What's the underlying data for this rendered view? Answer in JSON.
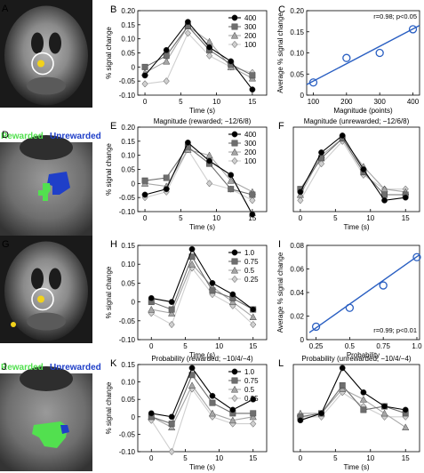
{
  "colors": {
    "series_1": "#000000",
    "series_2": "#6e6e6e",
    "series_3": "#a6a6a6",
    "series_4": "#cfcfcf",
    "fit_line": "#2a5fc2",
    "rewarded": "#52e04f",
    "unrewarded": "#1f3fc8",
    "activation": "#f2d21b",
    "roi_circle": "#ffffff"
  },
  "brain_panels": [
    {
      "label": "A",
      "type": "coronal",
      "roi_circle": true
    },
    {
      "label": "D",
      "type": "zoom",
      "rewarded_text": "Rewarded",
      "unrewarded_text": "Unrewarded"
    },
    {
      "label": "G",
      "type": "coronal",
      "roi_circle": true
    },
    {
      "label": "J",
      "type": "zoom",
      "rewarded_text": "Rewarded",
      "unrewarded_text": "Unrewarded"
    }
  ],
  "chart_data": [
    {
      "label": "B",
      "type": "line",
      "title": "",
      "xlabel": "Time (s)",
      "ylabel": "% signal change",
      "xlim": [
        -1,
        17
      ],
      "ylim": [
        -0.1,
        0.2
      ],
      "xticks": [
        0,
        5,
        10,
        15
      ],
      "yticks": [
        -0.1,
        -0.05,
        0,
        0.05,
        0.1,
        0.15,
        0.2
      ],
      "ytick_labels": [
        "-0.10",
        "-0.05",
        "0",
        "0.05",
        "0.10",
        "0.15",
        "0.20"
      ],
      "x": [
        0,
        3,
        6,
        9,
        12,
        15
      ],
      "legend_position": "top-right",
      "series": [
        {
          "name": "400",
          "values": [
            -0.03,
            0.06,
            0.16,
            0.07,
            0.02,
            -0.08
          ]
        },
        {
          "name": "300",
          "values": [
            0.0,
            0.04,
            0.145,
            0.06,
            0.01,
            -0.03
          ]
        },
        {
          "name": "200",
          "values": [
            -0.02,
            0.02,
            0.145,
            0.09,
            0.0,
            -0.04
          ]
        },
        {
          "name": "100",
          "values": [
            -0.06,
            -0.05,
            0.12,
            0.04,
            0.0,
            -0.02
          ]
        }
      ]
    },
    {
      "label": "C",
      "type": "scatter",
      "title": "",
      "xlabel": "Magnitude (points)",
      "ylabel": "Average % signal change",
      "xlim": [
        80,
        420
      ],
      "ylim": [
        0,
        0.2
      ],
      "xticks": [
        100,
        200,
        300,
        400
      ],
      "yticks": [
        0,
        0.05,
        0.1,
        0.15,
        0.2
      ],
      "ytick_labels": [
        "0",
        "0.05",
        "0.10",
        "0.15",
        "0.20"
      ],
      "x": [
        100,
        200,
        300,
        400
      ],
      "values": [
        0.03,
        0.088,
        0.1,
        0.156
      ],
      "fit_line": {
        "x": [
          80,
          420
        ],
        "y": [
          0.025,
          0.165
        ]
      },
      "annotation": "r=0.98; p<0.05"
    },
    {
      "label": "E",
      "type": "line",
      "title": "Magnitude (rewarded; −12/6/8)",
      "xlabel": "Time (s)",
      "ylabel": "% signal change",
      "xlim": [
        -1,
        17
      ],
      "ylim": [
        -0.1,
        0.2
      ],
      "xticks": [
        0,
        5,
        10,
        15
      ],
      "yticks": [
        -0.1,
        -0.05,
        0,
        0.05,
        0.1,
        0.15,
        0.2
      ],
      "ytick_labels": [
        "-0.10",
        "-0.05",
        "0",
        "0.05",
        "0.10",
        "0.15",
        "0.20"
      ],
      "x": [
        0,
        3,
        6,
        9,
        12,
        15
      ],
      "legend_position": "top-right",
      "series": [
        {
          "name": "400",
          "values": [
            -0.04,
            -0.02,
            0.145,
            0.08,
            0.03,
            -0.11
          ]
        },
        {
          "name": "300",
          "values": [
            0.01,
            0.02,
            0.13,
            0.07,
            -0.02,
            -0.04
          ]
        },
        {
          "name": "200",
          "values": [
            0.0,
            -0.01,
            0.12,
            0.1,
            0.01,
            -0.03
          ]
        },
        {
          "name": "100",
          "values": [
            -0.05,
            -0.03,
            0.12,
            0.0,
            -0.02,
            -0.06
          ]
        }
      ]
    },
    {
      "label": "F",
      "type": "line",
      "title": "Magnitude (unrewarded; −12/6/8)",
      "xlabel": "Time (s)",
      "ylabel": "",
      "xlim": [
        -1,
        17
      ],
      "ylim": [
        -0.1,
        0.2
      ],
      "xticks": [
        0,
        5,
        10,
        15
      ],
      "yticks": [],
      "x": [
        0,
        3,
        6,
        9,
        12,
        15
      ],
      "series": [
        {
          "name": "400",
          "values": [
            -0.03,
            0.11,
            0.17,
            0.05,
            -0.06,
            -0.05
          ]
        },
        {
          "name": "300",
          "values": [
            -0.02,
            0.09,
            0.16,
            0.04,
            -0.04,
            -0.04
          ]
        },
        {
          "name": "200",
          "values": [
            -0.04,
            0.1,
            0.16,
            0.06,
            -0.02,
            -0.03
          ]
        },
        {
          "name": "100",
          "values": [
            -0.06,
            0.07,
            0.15,
            0.03,
            -0.02,
            -0.02
          ]
        }
      ]
    },
    {
      "label": "H",
      "type": "line",
      "title": "",
      "xlabel": "Time (s)",
      "ylabel": "% signal change",
      "xlim": [
        -2,
        17
      ],
      "ylim": [
        -0.1,
        0.15
      ],
      "xticks": [
        0,
        5,
        10,
        15
      ],
      "yticks": [
        -0.1,
        -0.05,
        0,
        0.05,
        0.1,
        0.15
      ],
      "ytick_labels": [
        "-0.10",
        "-0.05",
        "0",
        "0.05",
        "0.10",
        "0.15"
      ],
      "x": [
        0,
        3,
        6,
        9,
        12,
        15
      ],
      "legend_position": "top-right",
      "series": [
        {
          "name": "1.0",
          "values": [
            0.01,
            0.0,
            0.14,
            0.05,
            0.02,
            -0.02
          ]
        },
        {
          "name": "0.75",
          "values": [
            0.0,
            -0.02,
            0.12,
            0.03,
            0.01,
            -0.02
          ]
        },
        {
          "name": "0.5",
          "values": [
            -0.02,
            -0.03,
            0.1,
            0.04,
            0.0,
            -0.04
          ]
        },
        {
          "name": "0.25",
          "values": [
            -0.03,
            -0.06,
            0.09,
            0.02,
            -0.01,
            -0.06
          ]
        }
      ]
    },
    {
      "label": "I",
      "type": "scatter",
      "title": "",
      "xlabel": "Probability",
      "ylabel": "Average % signal change",
      "xlim": [
        0.18,
        1.02
      ],
      "ylim": [
        0,
        0.08
      ],
      "xticks": [
        0.25,
        0.5,
        0.75,
        1.0
      ],
      "yticks": [
        0,
        0.02,
        0.04,
        0.06,
        0.08
      ],
      "xtick_labels": [
        "0.25",
        "0.5",
        "0.75",
        "1.0"
      ],
      "ytick_labels": [
        "0",
        "0.02",
        "0.04",
        "0.06",
        "0.08"
      ],
      "x": [
        0.25,
        0.5,
        0.75,
        1.0
      ],
      "values": [
        0.011,
        0.027,
        0.046,
        0.07
      ],
      "fit_line": {
        "x": [
          0.2,
          1.02
        ],
        "y": [
          0.006,
          0.072
        ]
      },
      "annotation": "r=0.99; p<0.01"
    },
    {
      "label": "K",
      "type": "line",
      "title": "Probability (rewarded; −10/4/−4)",
      "xlabel": "Time (s)",
      "ylabel": "% signal change",
      "xlim": [
        -2,
        17
      ],
      "ylim": [
        -0.1,
        0.15
      ],
      "xticks": [
        0,
        5,
        10,
        15
      ],
      "yticks": [
        -0.1,
        -0.05,
        0,
        0.05,
        0.1,
        0.15
      ],
      "ytick_labels": [
        "-0.10",
        "-0.05",
        "0",
        "0.05",
        "0.10",
        "0.15"
      ],
      "x": [
        0,
        3,
        6,
        9,
        12,
        15
      ],
      "legend_position": "top-right",
      "series": [
        {
          "name": "1.0",
          "values": [
            0.01,
            0.0,
            0.14,
            0.06,
            0.02,
            0.05
          ]
        },
        {
          "name": "0.75",
          "values": [
            0.0,
            -0.02,
            0.12,
            0.04,
            0.01,
            0.01
          ]
        },
        {
          "name": "0.5",
          "values": [
            0.0,
            -0.03,
            0.09,
            0.01,
            -0.01,
            0.0
          ]
        },
        {
          "name": "0.25",
          "values": [
            -0.01,
            -0.1,
            0.08,
            0.0,
            -0.02,
            -0.02
          ]
        }
      ]
    },
    {
      "label": "L",
      "type": "line",
      "title": "Probability (unrewarded; −10/4/−4)",
      "xlabel": "Time (s)",
      "ylabel": "",
      "xlim": [
        -1,
        17
      ],
      "ylim": [
        -0.1,
        0.15
      ],
      "xticks": [
        0,
        5,
        10,
        15
      ],
      "yticks": [],
      "x": [
        0,
        3,
        6,
        9,
        12,
        15
      ],
      "series": [
        {
          "name": "1.0",
          "values": [
            -0.01,
            0.01,
            0.14,
            0.07,
            0.03,
            0.02
          ]
        },
        {
          "name": "0.75",
          "values": [
            0.0,
            0.01,
            0.09,
            0.02,
            0.03,
            0.01
          ]
        },
        {
          "name": "0.5",
          "values": [
            0.01,
            0.01,
            0.08,
            0.05,
            0.01,
            -0.03
          ]
        },
        {
          "name": "0.25",
          "values": [
            0.0,
            0.0,
            0.07,
            0.03,
            0.0,
            0.0
          ]
        }
      ]
    }
  ]
}
